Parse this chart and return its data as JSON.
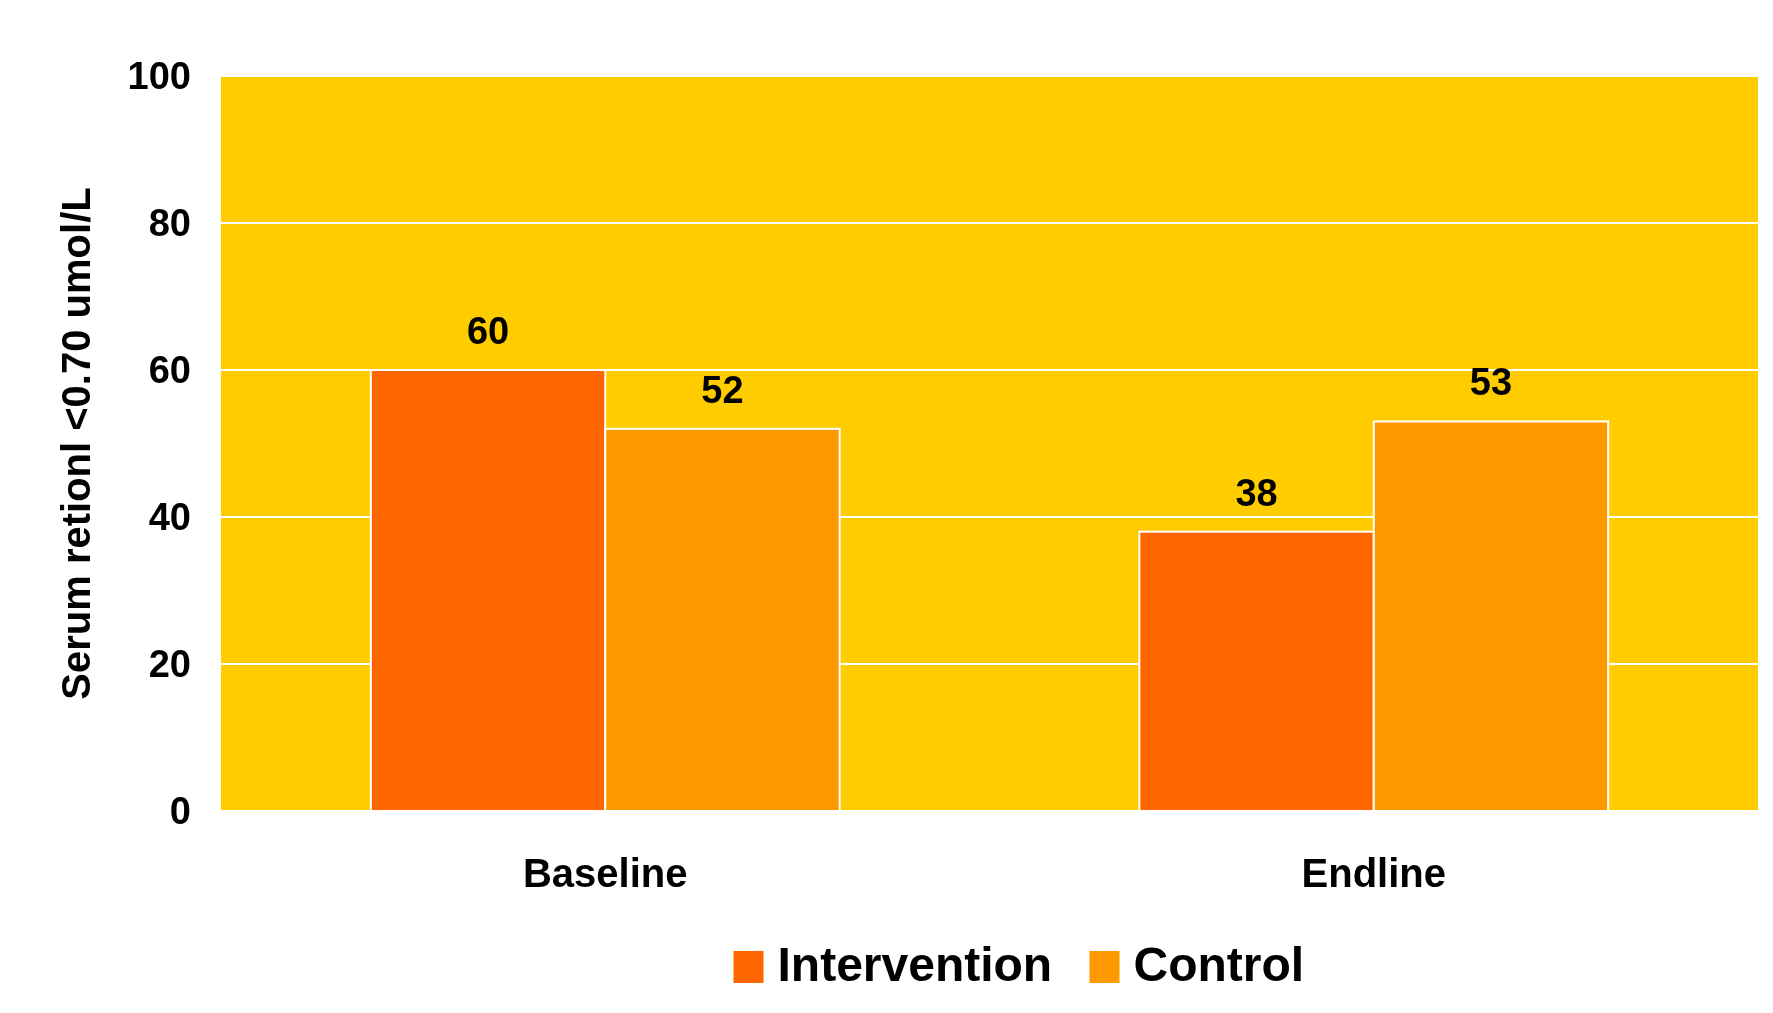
{
  "chart_data": {
    "type": "bar",
    "ylabel": "Serum retionl <0.70 umol/L",
    "categories": [
      "Baseline",
      "Endline"
    ],
    "series": [
      {
        "name": "Intervention",
        "color": "#ff6600",
        "values": [
          60,
          38
        ]
      },
      {
        "name": "Control",
        "color": "#ff9900",
        "values": [
          52,
          53
        ]
      }
    ],
    "ylim": [
      0,
      100
    ],
    "yticks": [
      0,
      20,
      40,
      60,
      80,
      100
    ],
    "grid": "y",
    "legend": "bottom",
    "data_labels": true
  }
}
